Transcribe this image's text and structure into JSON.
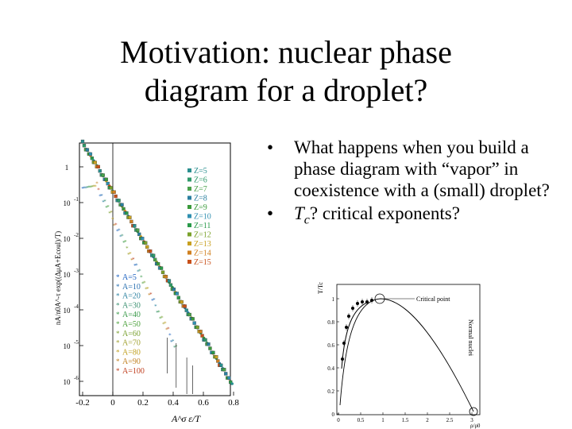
{
  "slide": {
    "title_line1": "Motivation: nuclear phase",
    "title_line2": "diagram for a droplet?",
    "bullets": [
      "What happens when you build a phase diagram with “vapor” in coexistence with a (small) droplet?",
      "? critical exponents?"
    ],
    "bullet2_symbol": "T",
    "bullet2_subscript": "c"
  },
  "left_plot": {
    "ylabel": "nA/n0A^-τ exp((ΔμA+Ecoul)/T)",
    "xlabel": "A^σ ε/T",
    "x_ticks": [
      "-0.2",
      "0",
      "0.2",
      "0.4",
      "0.6",
      "0.8"
    ],
    "y_ticks": [
      {
        "base": "1",
        "exp": ""
      },
      {
        "base": "10",
        "exp": "-1"
      },
      {
        "base": "10",
        "exp": "-2"
      },
      {
        "base": "10",
        "exp": "-3"
      },
      {
        "base": "10",
        "exp": "-4"
      },
      {
        "base": "10",
        "exp": "-5"
      },
      {
        "base": "10",
        "exp": "-6"
      }
    ],
    "legend_z": [
      {
        "label": "Z=5",
        "color": "#2a8f8f"
      },
      {
        "label": "Z=6",
        "color": "#2f9a6a"
      },
      {
        "label": "Z=7",
        "color": "#4aa14a"
      },
      {
        "label": "Z=8",
        "color": "#2a7f9f"
      },
      {
        "label": "Z=9",
        "color": "#3a9a3a"
      },
      {
        "label": "Z=10",
        "color": "#2f8fb0"
      },
      {
        "label": "Z=11",
        "color": "#2a9a4a"
      },
      {
        "label": "Z=12",
        "color": "#7aa12a"
      },
      {
        "label": "Z=13",
        "color": "#c8a020"
      },
      {
        "label": "Z=14",
        "color": "#d08020"
      },
      {
        "label": "Z=15",
        "color": "#c8501a"
      }
    ],
    "legend_a": [
      {
        "label": "A=5",
        "color": "#1a60c0"
      },
      {
        "label": "A=10",
        "color": "#2a70b0"
      },
      {
        "label": "A=20",
        "color": "#2a80a0"
      },
      {
        "label": "A=30",
        "color": "#3a9070"
      },
      {
        "label": "A=40",
        "color": "#3a9a4a"
      },
      {
        "label": "A=50",
        "color": "#4aa03a"
      },
      {
        "label": "A=60",
        "color": "#7aa030"
      },
      {
        "label": "A=70",
        "color": "#a0a030"
      },
      {
        "label": "A=80",
        "color": "#c0a020"
      },
      {
        "label": "A=90",
        "color": "#c08020"
      },
      {
        "label": "A=100",
        "color": "#c04020"
      }
    ]
  },
  "right_plot": {
    "ylabel": "T/Tc",
    "xlabel": "ρ/ρ0",
    "annotation_critical": "Critical point",
    "annotation_normal": "Normal nuclei",
    "x_ticks": [
      "0",
      "0.5",
      "1",
      "1.5",
      "2",
      "2.5",
      "3"
    ],
    "y_ticks": [
      "1",
      "0.8",
      "0.6",
      "0.4",
      "0.2",
      "0"
    ]
  }
}
